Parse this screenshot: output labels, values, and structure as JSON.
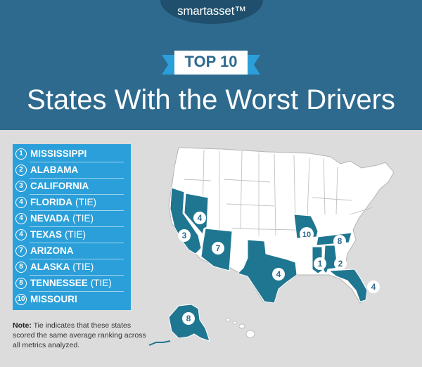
{
  "brand": {
    "logo_text": "smartasset™"
  },
  "banner": {
    "label": "TOP 10"
  },
  "title": "States With the Worst Drivers",
  "ranking": [
    {
      "rank": "1",
      "state": "MISSISSIPPI",
      "tie": ""
    },
    {
      "rank": "2",
      "state": "ALABAMA",
      "tie": ""
    },
    {
      "rank": "3",
      "state": "CALIFORNIA",
      "tie": ""
    },
    {
      "rank": "4",
      "state": "FLORIDA",
      "tie": "(TIE)"
    },
    {
      "rank": "4",
      "state": "NEVADA",
      "tie": "(TIE)"
    },
    {
      "rank": "4",
      "state": "TEXAS",
      "tie": "(TIE)"
    },
    {
      "rank": "7",
      "state": "ARIZONA",
      "tie": ""
    },
    {
      "rank": "8",
      "state": "ALASKA",
      "tie": "(TIE)"
    },
    {
      "rank": "8",
      "state": "TENNESSEE",
      "tie": "(TIE)"
    },
    {
      "rank": "10",
      "state": "MISSOURI",
      "tie": ""
    }
  ],
  "note": {
    "label": "Note:",
    "text": "Tie indicates that these states scored the same average ranking across all metrics analyzed."
  },
  "map_badges": [
    {
      "state": "California",
      "rank": "3"
    },
    {
      "state": "Nevada",
      "rank": "4"
    },
    {
      "state": "Arizona",
      "rank": "7"
    },
    {
      "state": "Texas",
      "rank": "4"
    },
    {
      "state": "Missouri",
      "rank": "10"
    },
    {
      "state": "Tennessee",
      "rank": "8"
    },
    {
      "state": "Mississippi",
      "rank": "1"
    },
    {
      "state": "Alabama",
      "rank": "2"
    },
    {
      "state": "Florida",
      "rank": "4"
    },
    {
      "state": "Alaska",
      "rank": "8"
    }
  ],
  "colors": {
    "header": "#2e6a8e",
    "list_box": "#2b9fd9",
    "highlight_state": "#1f7690",
    "other_state": "#ffffff",
    "background": "#dcdcdc"
  }
}
